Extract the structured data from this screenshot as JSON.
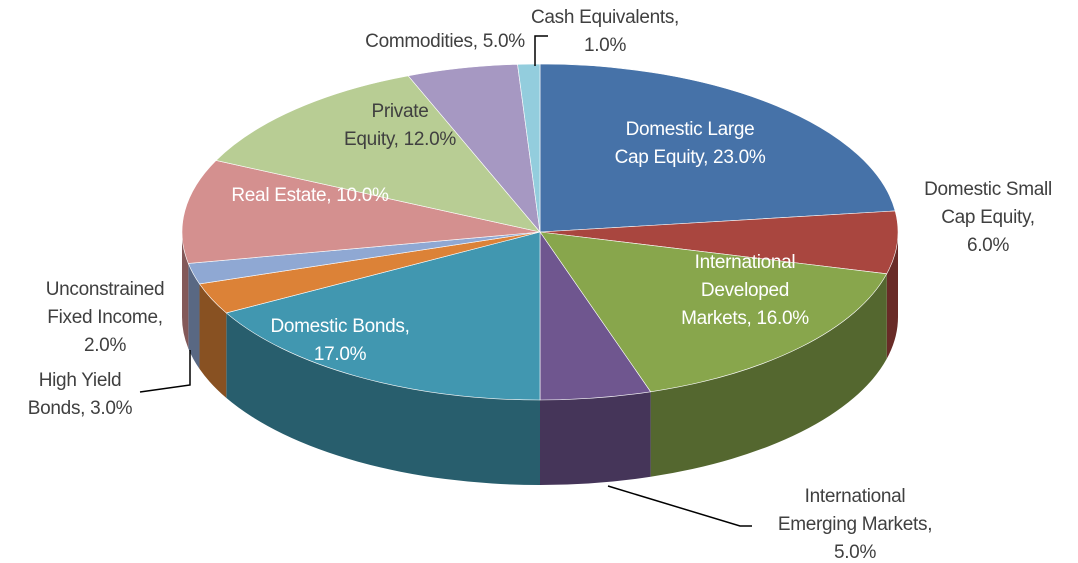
{
  "chart_data": {
    "type": "pie3d",
    "labels": [
      [
        "Domestic Large",
        "Cap Equity, 23.0%"
      ],
      [
        "Domestic Small",
        "Cap Equity,",
        "6.0%"
      ],
      [
        "International",
        "Developed",
        "Markets, 16.0%"
      ],
      [
        "International",
        "Emerging Markets,",
        "5.0%"
      ],
      [
        "Domestic Bonds,",
        "17.0%"
      ],
      [
        "High Yield",
        "Bonds, 3.0%"
      ],
      [
        "Unconstrained",
        "Fixed Income,",
        "2.0%"
      ],
      [
        "Real Estate, 10.0%"
      ],
      [
        "Private",
        "Equity, 12.0%"
      ],
      [
        "Commodities, 5.0%"
      ],
      [
        "Cash Equivalents,",
        "1.0%"
      ]
    ],
    "values": [
      23,
      6,
      16,
      5,
      17,
      3,
      2,
      10,
      12,
      5,
      1
    ],
    "colors": [
      "#4672a8",
      "#a9463f",
      "#88a64c",
      "#6f568f",
      "#4197b0",
      "#dc8237",
      "#8fa8d3",
      "#d4908f",
      "#b8cd94",
      "#a698c2",
      "#93cddd"
    ]
  }
}
